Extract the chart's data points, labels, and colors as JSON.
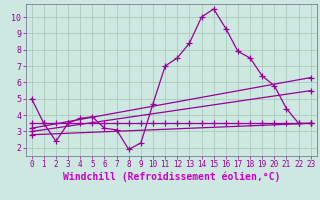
{
  "background_color": "#cce8e0",
  "grid_color": "#aaccbb",
  "line_color": "#990099",
  "xlabel": "Windchill (Refroidissement éolien,°C)",
  "xlim": [
    -0.5,
    23.5
  ],
  "ylim": [
    1.5,
    10.8
  ],
  "yticks": [
    2,
    3,
    4,
    5,
    6,
    7,
    8,
    9,
    10
  ],
  "xticks": [
    0,
    1,
    2,
    3,
    4,
    5,
    6,
    7,
    8,
    9,
    10,
    11,
    12,
    13,
    14,
    15,
    16,
    17,
    18,
    19,
    20,
    21,
    22,
    23
  ],
  "lines": [
    {
      "x": [
        0,
        1,
        2,
        3,
        4,
        5,
        6,
        7,
        8,
        9,
        10,
        11,
        12,
        13,
        14,
        15,
        16,
        17,
        18,
        19,
        20,
        21,
        22,
        23
      ],
      "y": [
        5.0,
        3.5,
        2.4,
        3.5,
        3.8,
        3.9,
        3.2,
        3.1,
        1.9,
        2.3,
        4.7,
        7.0,
        7.5,
        8.4,
        10.0,
        10.5,
        9.3,
        7.9,
        7.5,
        6.4,
        5.8,
        4.4,
        3.5,
        3.5
      ]
    },
    {
      "x": [
        0,
        1,
        2,
        3,
        4,
        5,
        6,
        7,
        8,
        9,
        10,
        11,
        12,
        13,
        14,
        15,
        16,
        17,
        18,
        19,
        20,
        21,
        22,
        23
      ],
      "y": [
        3.5,
        3.5,
        3.5,
        3.5,
        3.5,
        3.5,
        3.5,
        3.5,
        3.5,
        3.5,
        3.5,
        3.5,
        3.5,
        3.5,
        3.5,
        3.5,
        3.5,
        3.5,
        3.5,
        3.5,
        3.5,
        3.5,
        3.5,
        3.5
      ]
    },
    {
      "x": [
        0,
        23
      ],
      "y": [
        2.8,
        3.5
      ]
    },
    {
      "x": [
        0,
        23
      ],
      "y": [
        3.0,
        5.5
      ]
    },
    {
      "x": [
        0,
        23
      ],
      "y": [
        3.2,
        6.3
      ]
    }
  ],
  "marker": "+",
  "markersize": 4,
  "linewidth": 0.9,
  "xlabel_fontsize": 7,
  "tick_fontsize": 5.5,
  "xlabel_color": "#cc00cc",
  "xlabel_bg": "none"
}
